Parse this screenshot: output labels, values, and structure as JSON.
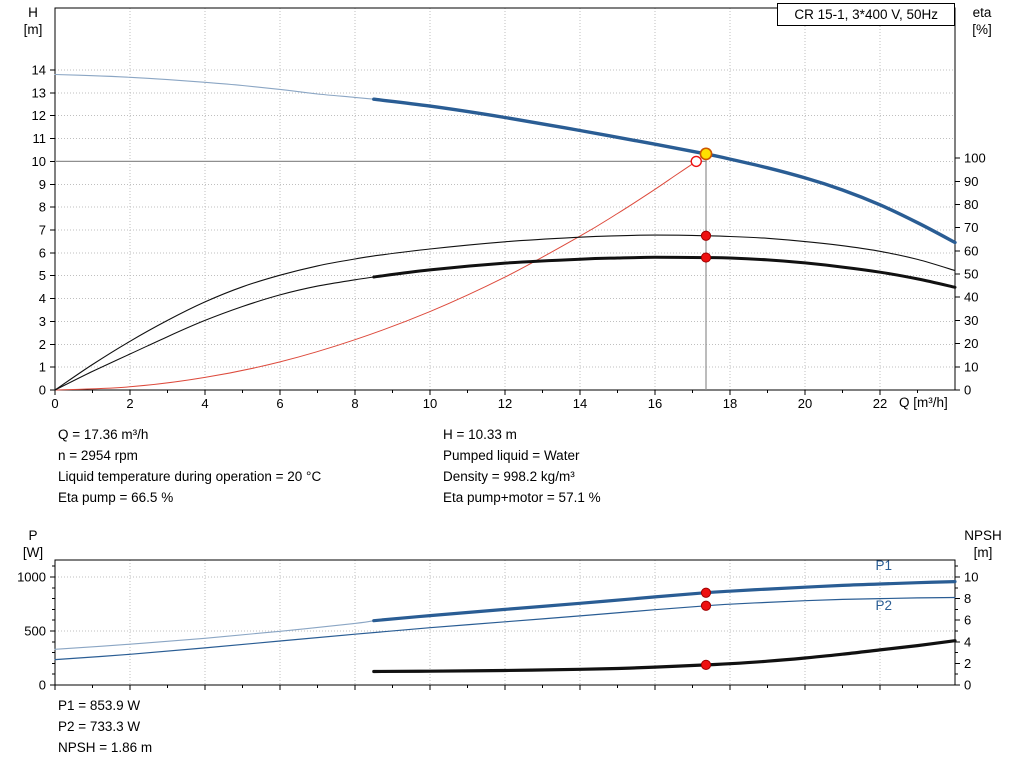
{
  "title_box": "CR 15-1, 3*400 V, 50Hz",
  "axis_titles": {
    "h": [
      "H",
      "[m]"
    ],
    "eta": [
      "eta",
      "[%]"
    ],
    "q": "Q [m³/h]",
    "p": [
      "P",
      "[W]"
    ],
    "npsh": [
      "NPSH",
      "[m]"
    ]
  },
  "info": {
    "left": [
      "Q = 17.36 m³/h",
      "n = 2954 rpm",
      "Liquid temperature during operation = 20 °C",
      "Eta pump = 66.5 %"
    ],
    "right": [
      "H = 10.33 m",
      "Pumped liquid = Water",
      "Density = 998.2 kg/m³",
      "Eta pump+motor = 57.1 %"
    ],
    "power": [
      "P1 = 853.9 W",
      "P2 = 733.3 W",
      "NPSH = 1.86 m"
    ]
  },
  "operating_point": {
    "q_m3h": 17.36,
    "h_m": 10.33,
    "n_rpm": 2954,
    "eta_pump_pct": 66.5,
    "eta_pump_motor_pct": 57.1,
    "p1_w": 853.9,
    "p2_w": 733.3,
    "npsh_m": 1.86,
    "liquid": "Water",
    "density_kg_m3": 998.2,
    "temperature_c": 20
  },
  "colors": {
    "blue": "#2a5d94",
    "blue_thin": "#8ba6c4",
    "black": "#111111",
    "red_line": "#dd4a3c",
    "red": "#ee1111",
    "red_dark": "#a00000",
    "yellow": "#ffe000",
    "orange": "#cc5500",
    "white": "#ffffff",
    "crosshair": "#8f8f8f",
    "grid": "#bfbfbf"
  },
  "chart_data": [
    {
      "id": "qh-eta-chart",
      "type": "line",
      "title": "CR 15-1, 3*400 V, 50Hz",
      "x": {
        "label": "Q [m³/h]",
        "range": [
          0,
          24
        ],
        "ticks": [
          0,
          2,
          4,
          6,
          8,
          10,
          12,
          14,
          16,
          18,
          20,
          22
        ],
        "minor": [
          1,
          3,
          5,
          7,
          9,
          11,
          13,
          15,
          17,
          19,
          21,
          23
        ],
        "grid": [
          2,
          4,
          6,
          8,
          10,
          12,
          14,
          16,
          18,
          20,
          22
        ],
        "show_labels": true
      },
      "y_left": {
        "label": "H [m]",
        "range": [
          0,
          16.71
        ],
        "ticks": [
          0,
          1,
          2,
          3,
          4,
          5,
          6,
          7,
          8,
          9,
          10,
          11,
          12,
          13,
          14
        ],
        "grid": [
          1,
          2,
          3,
          4,
          5,
          6,
          7,
          8,
          9,
          10,
          11,
          12,
          13,
          14
        ],
        "minor": []
      },
      "y_right": {
        "label": "eta [%]",
        "range": [
          0,
          164.7
        ],
        "ticks": [
          0,
          10,
          20,
          30,
          40,
          50,
          60,
          70,
          80,
          90,
          100
        ],
        "minor": []
      },
      "crosshair": [
        {
          "name": "duty-horizontal-line",
          "axis": "left",
          "x1": 0,
          "y1": 10.0,
          "x2": 17.36,
          "y2": 10.0
        },
        {
          "name": "duty-vertical-line",
          "axis": "left",
          "x1": 17.36,
          "y1": 0,
          "x2": 17.36,
          "y2": 10.33
        }
      ],
      "series": [
        {
          "name": "system-curve",
          "axis": "left",
          "color": "red_line",
          "width": 1,
          "points": [
            [
              0,
              0
            ],
            [
              2,
              0.14
            ],
            [
              4,
              0.55
            ],
            [
              6,
              1.23
            ],
            [
              8,
              2.2
            ],
            [
              10,
              3.43
            ],
            [
              12,
              4.94
            ],
            [
              14,
              6.73
            ],
            [
              15,
              7.72
            ],
            [
              16,
              8.78
            ],
            [
              16.6,
              9.45
            ],
            [
              17.1,
              10.0
            ]
          ]
        },
        {
          "name": "eta-pump-curve",
          "axis": "right",
          "color": "black",
          "width": 1.1,
          "points": [
            [
              0,
              0
            ],
            [
              1,
              11
            ],
            [
              2,
              21
            ],
            [
              3,
              30
            ],
            [
              4,
              38
            ],
            [
              5,
              44.5
            ],
            [
              6,
              49.5
            ],
            [
              7,
              53.5
            ],
            [
              8,
              56.5
            ],
            [
              8.5,
              57.8
            ],
            [
              10,
              60.8
            ],
            [
              12,
              63.9
            ],
            [
              14,
              65.9
            ],
            [
              15,
              66.5
            ],
            [
              16,
              66.8
            ],
            [
              17.36,
              66.5
            ],
            [
              18,
              66.2
            ],
            [
              19,
              65.4
            ],
            [
              20,
              64
            ],
            [
              21,
              62.2
            ],
            [
              22,
              59.8
            ],
            [
              23,
              56.3
            ],
            [
              24,
              51.5
            ]
          ]
        },
        {
          "name": "eta-pump-motor-curve-min-flow",
          "axis": "right",
          "color": "black",
          "width": 1.1,
          "points": [
            [
              0,
              0
            ],
            [
              1,
              8
            ],
            [
              2,
              15.5
            ],
            [
              3,
              23
            ],
            [
              4,
              30
            ],
            [
              5,
              36
            ],
            [
              6,
              41
            ],
            [
              7,
              44.8
            ],
            [
              8,
              47.5
            ],
            [
              8.5,
              48.7
            ]
          ]
        },
        {
          "name": "eta-pump-motor-curve",
          "axis": "right",
          "color": "black",
          "width": 3,
          "points": [
            [
              8.5,
              48.7
            ],
            [
              10,
              51.8
            ],
            [
              12,
              54.7
            ],
            [
              14,
              56.4
            ],
            [
              15,
              56.9
            ],
            [
              16,
              57.2
            ],
            [
              17.36,
              57.1
            ],
            [
              18,
              56.9
            ],
            [
              19,
              56.1
            ],
            [
              20,
              54.8
            ],
            [
              21,
              53
            ],
            [
              22,
              50.8
            ],
            [
              23,
              47.9
            ],
            [
              24,
              44.3
            ]
          ]
        },
        {
          "name": "head-curve-min-flow",
          "axis": "left",
          "color": "blue_thin",
          "width": 1.1,
          "points": [
            [
              0,
              13.8
            ],
            [
              1,
              13.75
            ],
            [
              2,
              13.68
            ],
            [
              3,
              13.58
            ],
            [
              4,
              13.46
            ],
            [
              5,
              13.32
            ],
            [
              6,
              13.15
            ],
            [
              7,
              12.95
            ],
            [
              8,
              12.8
            ],
            [
              8.5,
              12.72
            ]
          ]
        },
        {
          "name": "head-curve",
          "axis": "left",
          "color": "blue",
          "width": 3.4,
          "points": [
            [
              8.5,
              12.72
            ],
            [
              10,
              12.42
            ],
            [
              12,
              11.92
            ],
            [
              14,
              11.35
            ],
            [
              16,
              10.75
            ],
            [
              17.36,
              10.33
            ],
            [
              18,
              10.1
            ],
            [
              19,
              9.72
            ],
            [
              20,
              9.28
            ],
            [
              21,
              8.75
            ],
            [
              22,
              8.1
            ],
            [
              23,
              7.32
            ],
            [
              24,
              6.45
            ]
          ]
        }
      ],
      "labels": [],
      "markers": [
        {
          "name": "eta-pump-point",
          "axis": "right",
          "x": 17.36,
          "y": 66.5,
          "r": 4.6,
          "fill": "red",
          "stroke": "red_dark",
          "sw": 1
        },
        {
          "name": "eta-pump-motor-point",
          "axis": "right",
          "x": 17.36,
          "y": 57.1,
          "r": 4.6,
          "fill": "red",
          "stroke": "red_dark",
          "sw": 1
        },
        {
          "name": "requested-duty-point",
          "axis": "left",
          "x": 17.1,
          "y": 10.0,
          "r": 5,
          "fill": "white",
          "stroke": "red",
          "sw": 1.4
        },
        {
          "name": "duty-point",
          "axis": "left",
          "x": 17.36,
          "y": 10.33,
          "r": 5.6,
          "fill": "yellow",
          "stroke": "orange",
          "sw": 1.6
        }
      ]
    },
    {
      "id": "power-npsh-chart",
      "type": "line",
      "x": {
        "label": "",
        "range": [
          0,
          24
        ],
        "ticks": [
          0,
          2,
          4,
          6,
          8,
          10,
          12,
          14,
          16,
          18,
          20,
          22
        ],
        "minor": [
          1,
          3,
          5,
          7,
          9,
          11,
          13,
          15,
          17,
          19,
          21,
          23
        ],
        "grid": [
          2,
          4,
          6,
          8,
          10,
          12,
          14,
          16,
          18,
          20,
          22
        ],
        "show_labels": false
      },
      "y_left": {
        "label": "P [W]",
        "range": [
          0,
          1157
        ],
        "ticks": [
          0,
          500,
          1000
        ],
        "minor": [
          100,
          200,
          300,
          400,
          600,
          700,
          800,
          900,
          1100
        ],
        "grid": [
          500,
          1000
        ]
      },
      "y_right": {
        "label": "NPSH [m]",
        "range": [
          0,
          11.57
        ],
        "ticks": [
          0,
          2,
          4,
          6,
          8,
          10
        ],
        "minor": [
          1,
          3,
          5,
          7,
          9,
          11
        ]
      },
      "crosshair": [],
      "series": [
        {
          "name": "p1-curve-min-flow",
          "axis": "left",
          "color": "blue_thin",
          "width": 1.1,
          "points": [
            [
              0,
              330
            ],
            [
              2,
              378
            ],
            [
              4,
              432
            ],
            [
              6,
              497
            ],
            [
              8,
              570
            ],
            [
              8.5,
              595
            ]
          ]
        },
        {
          "name": "p1-curve",
          "axis": "left",
          "color": "blue",
          "width": 3.2,
          "points": [
            [
              8.5,
              595
            ],
            [
              10,
              642
            ],
            [
              12,
              700
            ],
            [
              14,
              756
            ],
            [
              16,
              815
            ],
            [
              17.36,
              853.9
            ],
            [
              18,
              868
            ],
            [
              19,
              888
            ],
            [
              20,
              905
            ],
            [
              21,
              922
            ],
            [
              22,
              935
            ],
            [
              23,
              947
            ],
            [
              24,
              957
            ]
          ]
        },
        {
          "name": "p2-curve",
          "axis": "left",
          "color": "blue",
          "width": 1.2,
          "points": [
            [
              0,
              235
            ],
            [
              2,
              284
            ],
            [
              4,
              343
            ],
            [
              6,
              407
            ],
            [
              8,
              470
            ],
            [
              10,
              530
            ],
            [
              12,
              585
            ],
            [
              14,
              640
            ],
            [
              16,
              697
            ],
            [
              17.36,
              733.3
            ],
            [
              18,
              748
            ],
            [
              19,
              765
            ],
            [
              20,
              780
            ],
            [
              21,
              792
            ],
            [
              22,
              800
            ],
            [
              23,
              806
            ],
            [
              24,
              810
            ]
          ]
        },
        {
          "name": "npsh-curve",
          "axis": "right",
          "color": "black",
          "width": 3.2,
          "points": [
            [
              8.5,
              1.25
            ],
            [
              10,
              1.28
            ],
            [
              12,
              1.34
            ],
            [
              14,
              1.45
            ],
            [
              15,
              1.53
            ],
            [
              16,
              1.66
            ],
            [
              17.36,
              1.86
            ],
            [
              18,
              1.97
            ],
            [
              19,
              2.2
            ],
            [
              20,
              2.5
            ],
            [
              21,
              2.85
            ],
            [
              22,
              3.25
            ],
            [
              23,
              3.65
            ],
            [
              24,
              4.1
            ]
          ]
        }
      ],
      "labels": [
        {
          "name": "p1-curve-label",
          "text": "P1",
          "axis": "left",
          "x": 22.1,
          "y": 1065,
          "color": "blue"
        },
        {
          "name": "p2-curve-label",
          "text": "P2",
          "axis": "left",
          "x": 22.1,
          "y": 694,
          "color": "blue"
        }
      ],
      "markers": [
        {
          "name": "p1-point",
          "axis": "left",
          "x": 17.36,
          "y": 853.9,
          "r": 4.6,
          "fill": "red",
          "stroke": "red_dark",
          "sw": 1
        },
        {
          "name": "p2-point",
          "axis": "left",
          "x": 17.36,
          "y": 733.3,
          "r": 4.6,
          "fill": "red",
          "stroke": "red_dark",
          "sw": 1
        },
        {
          "name": "npsh-point",
          "axis": "right",
          "x": 17.36,
          "y": 1.86,
          "r": 4.6,
          "fill": "red",
          "stroke": "red_dark",
          "sw": 1
        }
      ]
    }
  ]
}
